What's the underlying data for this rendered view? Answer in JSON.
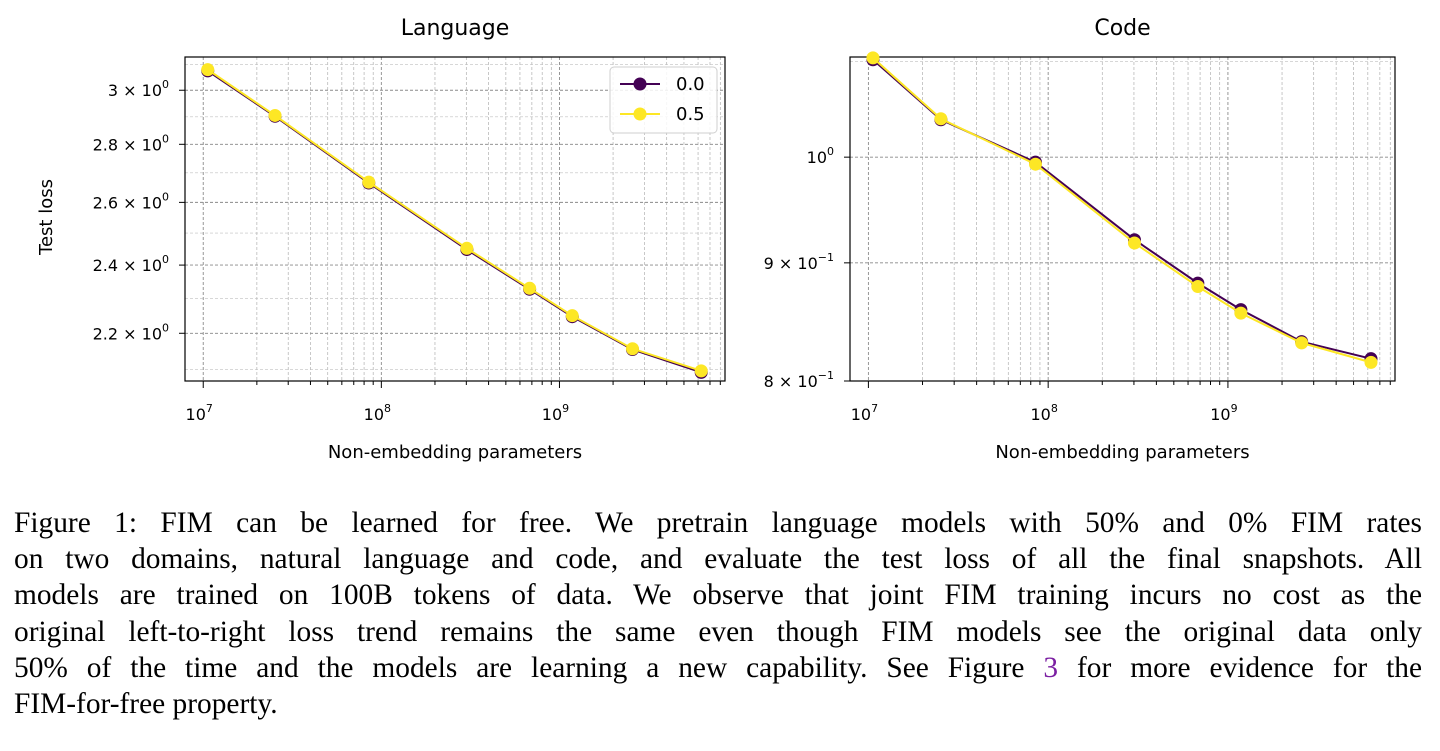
{
  "chart_data": [
    {
      "type": "line",
      "title": "Language",
      "xlabel": "Non-embedding parameters",
      "ylabel": "Test loss",
      "xscale": "log",
      "yscale": "log",
      "xlim": [
        7900000,
        8500000000
      ],
      "ylim": [
        2.07,
        3.13
      ],
      "x_ticks": [
        {
          "value": 10000000,
          "base": "10",
          "exp": "7"
        },
        {
          "value": 100000000,
          "base": "10",
          "exp": "8"
        },
        {
          "value": 1000000000,
          "base": "10",
          "exp": "9"
        }
      ],
      "y_ticks": [
        {
          "value": 3.0,
          "mant": "3",
          "exp": "0"
        },
        {
          "value": 2.8,
          "mant": "2.8",
          "exp": "0"
        },
        {
          "value": 2.6,
          "mant": "2.6",
          "exp": "0"
        },
        {
          "value": 2.4,
          "mant": "2.4",
          "exp": "0"
        },
        {
          "value": 2.2,
          "mant": "2.2",
          "exp": "0"
        }
      ],
      "grid": true,
      "legend": "top-right",
      "x": [
        10600000,
        25300000,
        85000000,
        302000000,
        680000000,
        1180000000,
        2570000000,
        6250000000
      ],
      "series": [
        {
          "name": "0.0",
          "color": "#440154",
          "values": [
            3.075,
            2.902,
            2.665,
            2.448,
            2.327,
            2.247,
            2.155,
            2.093
          ]
        },
        {
          "name": "0.5",
          "color": "#fde725",
          "values": [
            3.08,
            2.905,
            2.668,
            2.452,
            2.33,
            2.25,
            2.157,
            2.097
          ]
        }
      ]
    },
    {
      "type": "line",
      "title": "Code",
      "xlabel": "Non-embedding parameters",
      "ylabel": "",
      "xscale": "log",
      "yscale": "log",
      "xlim": [
        7900000,
        8500000000
      ],
      "ylim": [
        0.8,
        1.105
      ],
      "x_ticks": [
        {
          "value": 10000000,
          "base": "10",
          "exp": "7"
        },
        {
          "value": 100000000,
          "base": "10",
          "exp": "8"
        },
        {
          "value": 1000000000,
          "base": "10",
          "exp": "9"
        }
      ],
      "y_ticks": [
        {
          "value": 1.0,
          "mant": "",
          "exp": "0"
        },
        {
          "value": 0.9,
          "mant": "9",
          "exp": "−1"
        },
        {
          "value": 0.8,
          "mant": "8",
          "exp": "−1"
        }
      ],
      "grid": true,
      "legend": "",
      "x": [
        10600000,
        25300000,
        85000000,
        302000000,
        680000000,
        1180000000,
        2570000000,
        6250000000
      ],
      "series": [
        {
          "name": "0.0",
          "color": "#440154",
          "values": [
            1.102,
            1.038,
            0.995,
            0.921,
            0.882,
            0.859,
            0.832,
            0.818
          ]
        },
        {
          "name": "0.5",
          "color": "#fde725",
          "values": [
            1.104,
            1.039,
            0.993,
            0.918,
            0.879,
            0.856,
            0.831,
            0.815
          ]
        }
      ]
    }
  ],
  "caption": {
    "lines": [
      "Figure 1: FIM can be learned for free. We pretrain language models with 50% and 0% FIM rates",
      "on two domains, natural language and code, and evaluate the test loss of all the final snapshots. All",
      "models are trained on 100B tokens of data. We observe that joint FIM training incurs no cost as the",
      "original left-to-right loss trend remains the same even though FIM models see the original data only",
      "50% of the time and the models are learning a new capability. See Figure"
    ],
    "ref": "3",
    "after_ref": " for more evidence for the",
    "last_line": "FIM-for-free property."
  }
}
